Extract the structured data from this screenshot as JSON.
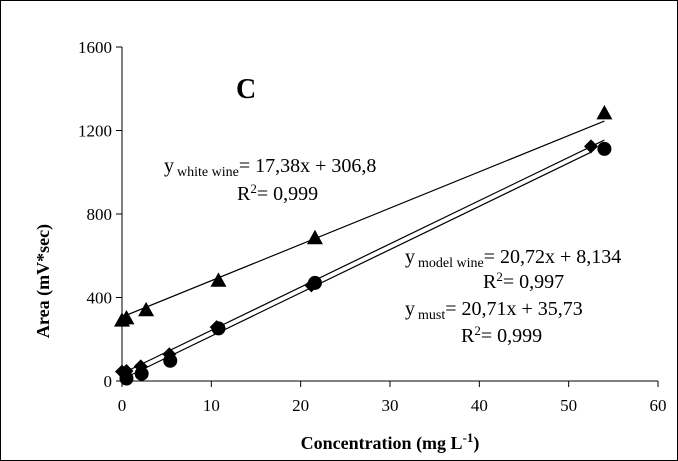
{
  "chart_data": {
    "type": "scatter",
    "panel_label": "C",
    "xlabel": {
      "main": "Concentration (mg L",
      "sup": "-1",
      "tail": ")"
    },
    "ylabel": "Area (mV*sec)",
    "xlim": [
      0,
      60
    ],
    "ylim": [
      0,
      1600
    ],
    "x_ticks": [
      0,
      10,
      20,
      30,
      40,
      50,
      60
    ],
    "y_ticks": [
      0,
      400,
      800,
      1200,
      1600
    ],
    "grid": false,
    "legend": "none",
    "series": [
      {
        "key": "white-wine",
        "marker": "triangle",
        "color": "#000000",
        "x": [
          0,
          0.5,
          2.7,
          10.8,
          21.6,
          54
        ],
        "y": [
          291,
          302,
          341,
          482,
          686,
          1284
        ],
        "fit": {
          "slope": 17.38,
          "intercept": 306.8
        },
        "equation": {
          "y": "y",
          "sub": "white wine",
          "rhs": "= 17,38x + 306,8",
          "r2_label": "R",
          "r2_sup": "2",
          "r2_value": "= 0,999"
        }
      },
      {
        "key": "model-wine",
        "marker": "diamond",
        "color": "#000000",
        "x": [
          0,
          0.5,
          2.1,
          5.3,
          10.6,
          21.2,
          52.5
        ],
        "y": [
          45,
          48,
          70,
          128,
          258,
          458,
          1124
        ],
        "fit": {
          "slope": 20.72,
          "intercept": 8.134
        },
        "equation": {
          "y": "y",
          "sub": "model wine",
          "rhs": "= 20,72x + 8,134",
          "r2_label": "R",
          "r2_sup": "2",
          "r2_value": "= 0,997"
        }
      },
      {
        "key": "must",
        "marker": "circle",
        "color": "#000000",
        "x": [
          0.5,
          2.2,
          5.4,
          10.8,
          21.6,
          54
        ],
        "y": [
          12,
          35,
          97,
          252,
          470,
          1112
        ],
        "fit": {
          "slope": 20.71,
          "intercept": 35.73
        },
        "equation": {
          "y": "y",
          "sub": "must",
          "rhs": "= 20,71x + 35,73",
          "r2_label": "R",
          "r2_sup": "2",
          "r2_value": "= 0,999"
        }
      }
    ]
  }
}
